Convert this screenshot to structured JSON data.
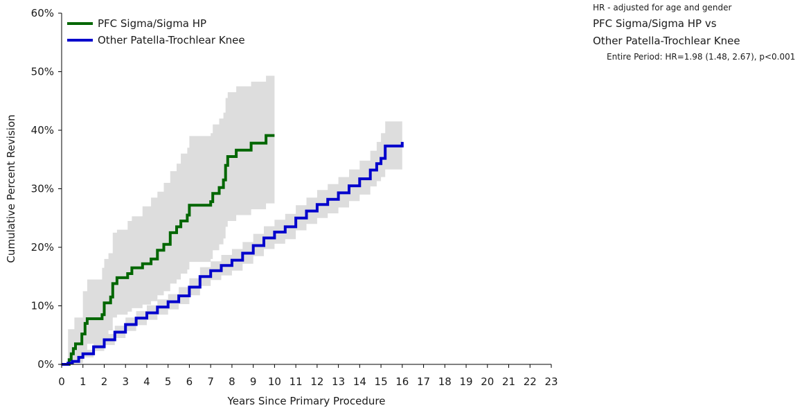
{
  "chart_data": {
    "type": "line",
    "xlabel": "Years Since Primary Procedure",
    "ylabel": "Cumulative Percent Revision",
    "xlim": [
      0,
      23
    ],
    "ylim": [
      0,
      60
    ],
    "x_ticks": [
      "0",
      "1",
      "2",
      "3",
      "4",
      "5",
      "6",
      "7",
      "8",
      "9",
      "10",
      "11",
      "12",
      "13",
      "14",
      "15",
      "16",
      "17",
      "18",
      "19",
      "20",
      "21",
      "22",
      "23"
    ],
    "y_ticks": [
      "0%",
      "10%",
      "20%",
      "30%",
      "40%",
      "50%",
      "60%"
    ],
    "grid": false,
    "legend_position": "top-left",
    "series": [
      {
        "name": "PFC Sigma/Sigma HP",
        "color": "#006600",
        "step": true,
        "points": [
          [
            0,
            0
          ],
          [
            0.3,
            0
          ],
          [
            0.35,
            0.8
          ],
          [
            0.45,
            1.8
          ],
          [
            0.55,
            2.7
          ],
          [
            0.65,
            3.5
          ],
          [
            0.95,
            5.2
          ],
          [
            1.1,
            7.0
          ],
          [
            1.2,
            7.8
          ],
          [
            1.9,
            8.5
          ],
          [
            2.0,
            10.5
          ],
          [
            2.3,
            11.5
          ],
          [
            2.4,
            13.8
          ],
          [
            2.6,
            14.8
          ],
          [
            3.1,
            15.5
          ],
          [
            3.3,
            16.5
          ],
          [
            3.8,
            17.2
          ],
          [
            4.2,
            18.0
          ],
          [
            4.5,
            19.5
          ],
          [
            4.8,
            20.5
          ],
          [
            5.1,
            22.5
          ],
          [
            5.4,
            23.5
          ],
          [
            5.6,
            24.5
          ],
          [
            5.9,
            25.5
          ],
          [
            6.0,
            27.2
          ],
          [
            7.0,
            27.8
          ],
          [
            7.1,
            29.2
          ],
          [
            7.4,
            30.2
          ],
          [
            7.6,
            31.5
          ],
          [
            7.7,
            34.0
          ],
          [
            7.8,
            35.5
          ],
          [
            8.2,
            36.6
          ],
          [
            8.9,
            37.8
          ],
          [
            9.6,
            39.1
          ],
          [
            10.0,
            39.1
          ]
        ],
        "ci_upper": [
          [
            0,
            0
          ],
          [
            0.3,
            6.0
          ],
          [
            0.6,
            8.0
          ],
          [
            1.0,
            12.5
          ],
          [
            1.2,
            14.5
          ],
          [
            1.9,
            16.5
          ],
          [
            2.0,
            18.0
          ],
          [
            2.2,
            19.0
          ],
          [
            2.4,
            22.5
          ],
          [
            2.6,
            23.0
          ],
          [
            3.1,
            24.5
          ],
          [
            3.3,
            25.3
          ],
          [
            3.8,
            27.0
          ],
          [
            4.2,
            28.5
          ],
          [
            4.5,
            29.5
          ],
          [
            4.8,
            31.0
          ],
          [
            5.1,
            33.0
          ],
          [
            5.4,
            34.3
          ],
          [
            5.6,
            36.0
          ],
          [
            5.9,
            37.0
          ],
          [
            6.0,
            39.0
          ],
          [
            7.0,
            39.5
          ],
          [
            7.1,
            41.0
          ],
          [
            7.4,
            42.0
          ],
          [
            7.6,
            43.0
          ],
          [
            7.7,
            45.5
          ],
          [
            7.8,
            46.5
          ],
          [
            8.2,
            47.5
          ],
          [
            8.9,
            48.3
          ],
          [
            9.6,
            49.3
          ],
          [
            10.0,
            49.3
          ]
        ],
        "ci_lower": [
          [
            0,
            0
          ],
          [
            0.3,
            0
          ],
          [
            0.6,
            0.5
          ],
          [
            1.0,
            2.5
          ],
          [
            1.2,
            3.5
          ],
          [
            1.9,
            3.8
          ],
          [
            2.0,
            5.0
          ],
          [
            2.2,
            5.8
          ],
          [
            2.4,
            8.0
          ],
          [
            2.6,
            8.5
          ],
          [
            3.1,
            9.0
          ],
          [
            3.3,
            9.6
          ],
          [
            3.8,
            10.2
          ],
          [
            4.2,
            10.8
          ],
          [
            4.5,
            11.8
          ],
          [
            4.8,
            12.5
          ],
          [
            5.1,
            13.8
          ],
          [
            5.4,
            14.5
          ],
          [
            5.6,
            15.5
          ],
          [
            5.9,
            16.2
          ],
          [
            6.0,
            17.5
          ],
          [
            7.0,
            18.0
          ],
          [
            7.1,
            19.5
          ],
          [
            7.4,
            20.5
          ],
          [
            7.6,
            21.5
          ],
          [
            7.7,
            23.5
          ],
          [
            7.8,
            24.5
          ],
          [
            8.2,
            25.5
          ],
          [
            8.9,
            26.5
          ],
          [
            9.6,
            27.5
          ],
          [
            10.0,
            30.5
          ]
        ]
      },
      {
        "name": "Other Patella-Trochlear Knee",
        "color": "#0000cc",
        "step": true,
        "points": [
          [
            0,
            0
          ],
          [
            0.3,
            0.2
          ],
          [
            0.5,
            0.5
          ],
          [
            0.8,
            1.2
          ],
          [
            1.0,
            1.8
          ],
          [
            1.5,
            3.0
          ],
          [
            2.0,
            4.2
          ],
          [
            2.5,
            5.5
          ],
          [
            3.0,
            6.8
          ],
          [
            3.5,
            7.9
          ],
          [
            4.0,
            8.8
          ],
          [
            4.5,
            9.8
          ],
          [
            5.0,
            10.7
          ],
          [
            5.5,
            11.7
          ],
          [
            6.0,
            13.2
          ],
          [
            6.5,
            15.0
          ],
          [
            7.0,
            16.0
          ],
          [
            7.5,
            16.9
          ],
          [
            8.0,
            17.8
          ],
          [
            8.5,
            19.0
          ],
          [
            9.0,
            20.3
          ],
          [
            9.5,
            21.6
          ],
          [
            10.0,
            22.6
          ],
          [
            10.5,
            23.5
          ],
          [
            11.0,
            25.0
          ],
          [
            11.5,
            26.2
          ],
          [
            12.0,
            27.3
          ],
          [
            12.5,
            28.2
          ],
          [
            13.0,
            29.3
          ],
          [
            13.5,
            30.5
          ],
          [
            14.0,
            31.7
          ],
          [
            14.5,
            33.2
          ],
          [
            14.8,
            34.3
          ],
          [
            15.0,
            35.2
          ],
          [
            15.2,
            37.3
          ],
          [
            16.0,
            38.0
          ]
        ],
        "ci_upper": [
          [
            0,
            0
          ],
          [
            0.5,
            1.0
          ],
          [
            1.0,
            2.5
          ],
          [
            1.5,
            3.8
          ],
          [
            2.0,
            5.2
          ],
          [
            2.5,
            6.6
          ],
          [
            3.0,
            8.0
          ],
          [
            3.5,
            9.1
          ],
          [
            4.0,
            10.1
          ],
          [
            4.5,
            11.1
          ],
          [
            5.0,
            12.0
          ],
          [
            5.5,
            13.2
          ],
          [
            6.0,
            14.7
          ],
          [
            6.5,
            16.6
          ],
          [
            7.0,
            17.6
          ],
          [
            7.5,
            18.7
          ],
          [
            8.0,
            19.7
          ],
          [
            8.5,
            20.9
          ],
          [
            9.0,
            22.3
          ],
          [
            9.5,
            23.6
          ],
          [
            10.0,
            24.7
          ],
          [
            10.5,
            25.7
          ],
          [
            11.0,
            27.2
          ],
          [
            11.5,
            28.5
          ],
          [
            12.0,
            29.8
          ],
          [
            12.5,
            30.8
          ],
          [
            13.0,
            32.0
          ],
          [
            13.5,
            33.3
          ],
          [
            14.0,
            34.8
          ],
          [
            14.5,
            36.5
          ],
          [
            14.8,
            38.0
          ],
          [
            15.0,
            39.5
          ],
          [
            15.2,
            41.5
          ],
          [
            16.0,
            43.0
          ]
        ],
        "ci_lower": [
          [
            0,
            0
          ],
          [
            0.5,
            0.2
          ],
          [
            1.0,
            1.2
          ],
          [
            1.5,
            2.3
          ],
          [
            2.0,
            3.3
          ],
          [
            2.5,
            4.5
          ],
          [
            3.0,
            5.7
          ],
          [
            3.5,
            6.7
          ],
          [
            4.0,
            7.6
          ],
          [
            4.5,
            8.5
          ],
          [
            5.0,
            9.4
          ],
          [
            5.5,
            10.3
          ],
          [
            6.0,
            11.8
          ],
          [
            6.5,
            13.4
          ],
          [
            7.0,
            14.4
          ],
          [
            7.5,
            15.2
          ],
          [
            8.0,
            16.0
          ],
          [
            8.5,
            17.2
          ],
          [
            9.0,
            18.5
          ],
          [
            9.5,
            19.7
          ],
          [
            10.0,
            20.6
          ],
          [
            10.5,
            21.4
          ],
          [
            11.0,
            22.9
          ],
          [
            11.5,
            24.0
          ],
          [
            12.0,
            25.0
          ],
          [
            12.5,
            25.8
          ],
          [
            13.0,
            26.8
          ],
          [
            13.5,
            27.9
          ],
          [
            14.0,
            29.0
          ],
          [
            14.5,
            30.4
          ],
          [
            14.8,
            31.3
          ],
          [
            15.0,
            32.0
          ],
          [
            15.2,
            33.3
          ],
          [
            16.0,
            33.3
          ]
        ]
      }
    ],
    "ci_color": "#dddddd"
  },
  "hr_box": {
    "note": "HR - adjusted for age and gender",
    "comparison_line1": "PFC Sigma/Sigma HP vs",
    "comparison_line2": "Other Patella-Trochlear Knee",
    "result": "Entire Period: HR=1.98 (1.48, 2.67), p<0.001"
  }
}
